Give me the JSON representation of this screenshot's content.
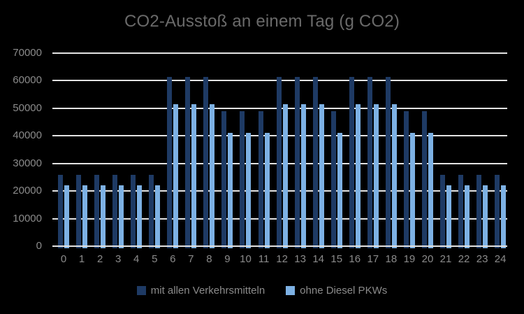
{
  "title": "CO2-Ausstoß an einem Tag (g CO2)",
  "colors": {
    "background": "#000000",
    "series1": "#1E3A64",
    "series2": "#7DB1E4",
    "gridline": "#E3E3E3",
    "axis_text": "#8B8B8B",
    "title_text": "#6A6A6A"
  },
  "chart_data": {
    "type": "bar",
    "title": "CO2-Ausstoß an einem Tag (g CO2)",
    "xlabel": "",
    "ylabel": "",
    "categories": [
      "0",
      "1",
      "2",
      "3",
      "4",
      "5",
      "6",
      "7",
      "8",
      "9",
      "10",
      "11",
      "12",
      "13",
      "14",
      "15",
      "16",
      "17",
      "18",
      "19",
      "20",
      "21",
      "22",
      "23",
      "24"
    ],
    "series": [
      {
        "name": "mit allen Verkehrsmitteln",
        "color": "#1E3A64",
        "values": [
          26000,
          26000,
          26000,
          26000,
          26000,
          26000,
          61500,
          61500,
          61500,
          49000,
          49000,
          49000,
          61500,
          61500,
          61500,
          49000,
          61500,
          61500,
          61500,
          49000,
          49000,
          26000,
          26000,
          26000,
          26000
        ]
      },
      {
        "name": "ohne Diesel PKWs",
        "color": "#7DB1E4",
        "values": [
          22000,
          22000,
          22000,
          22000,
          22000,
          22000,
          51500,
          51500,
          51500,
          41000,
          41000,
          41000,
          51500,
          51500,
          51500,
          41000,
          51500,
          51500,
          51500,
          41000,
          41000,
          22000,
          22000,
          22000,
          22000
        ]
      }
    ],
    "ylim": [
      0,
      70000
    ],
    "yticks": [
      0,
      10000,
      20000,
      30000,
      40000,
      50000,
      60000,
      70000
    ],
    "grid": true,
    "legend_position": "bottom"
  }
}
